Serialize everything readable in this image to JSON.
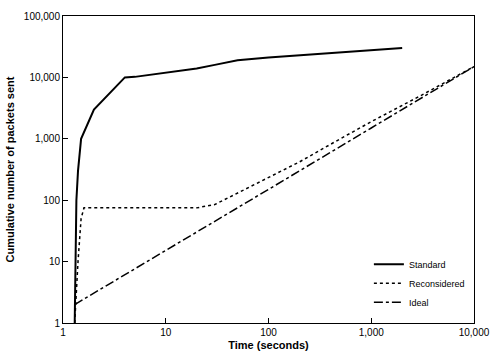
{
  "chart_data": {
    "type": "line",
    "x_label": "Time (seconds)",
    "y_label": "Cumulative number of packets sent",
    "log": true,
    "grid": false,
    "legend": "bottom right",
    "xlim": [
      1,
      10000
    ],
    "ylim": [
      1,
      100000
    ],
    "xticks": [
      1,
      10,
      100,
      {
        "value": 1000,
        "label": "1,000"
      },
      {
        "value": 10000,
        "label": "10,000"
      }
    ],
    "yticks": [
      1,
      10,
      100,
      {
        "value": 1000,
        "label": "1,000"
      },
      {
        "value": 10000,
        "label": "10,000"
      },
      {
        "value": 100000,
        "label": "100,000"
      }
    ],
    "series": [
      {
        "name": "Standard",
        "color": "#000000",
        "line_style": "solid",
        "x": [
          1.3,
          1.35,
          1.4,
          1.5,
          2,
          3,
          4,
          5,
          10,
          20,
          30,
          50,
          100,
          300,
          1000,
          2000
        ],
        "values": [
          1,
          100,
          300,
          1000,
          3000,
          6000,
          10000,
          10200,
          12000,
          14000,
          16000,
          19000,
          21000,
          24000,
          28000,
          30000
        ]
      },
      {
        "name": "Reconsidered",
        "color": "#000000",
        "line_style": "dotted",
        "x": [
          1.3,
          1.4,
          1.5,
          1.6,
          3,
          10,
          20,
          30,
          50,
          100,
          200,
          500,
          1000,
          3000,
          10000
        ],
        "values": [
          1,
          10,
          50,
          75,
          75,
          75,
          75,
          85,
          130,
          230,
          420,
          1000,
          1900,
          5000,
          15000
        ]
      },
      {
        "name": "Ideal",
        "color": "#000000",
        "line_style": "dash-dot",
        "x": [
          1.3,
          10,
          100,
          1000,
          10000
        ],
        "values": [
          2,
          15,
          150,
          1500,
          15000
        ]
      }
    ]
  }
}
